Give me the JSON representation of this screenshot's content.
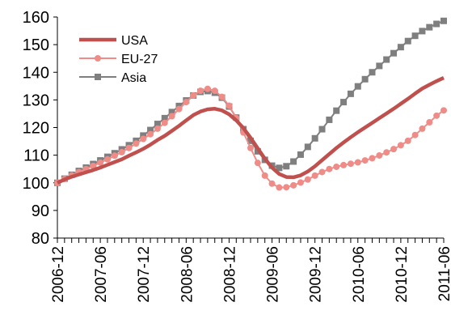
{
  "chart_data": {
    "type": "line",
    "x": [
      "2006-12",
      "2007-01",
      "2007-02",
      "2007-03",
      "2007-04",
      "2007-05",
      "2007-06",
      "2007-07",
      "2007-08",
      "2007-09",
      "2007-10",
      "2007-11",
      "2007-12",
      "2008-01",
      "2008-02",
      "2008-03",
      "2008-04",
      "2008-05",
      "2008-06",
      "2008-07",
      "2008-08",
      "2008-09",
      "2008-10",
      "2008-11",
      "2008-12",
      "2009-01",
      "2009-02",
      "2009-03",
      "2009-04",
      "2009-05",
      "2009-06",
      "2009-07",
      "2009-08",
      "2009-09",
      "2009-10",
      "2009-11",
      "2009-12",
      "2010-01",
      "2010-02",
      "2010-03",
      "2010-04",
      "2010-05",
      "2010-06",
      "2010-07",
      "2010-08",
      "2010-09",
      "2010-10",
      "2010-11",
      "2010-12",
      "2011-01",
      "2011-02",
      "2011-03",
      "2011-04",
      "2011-05",
      "2011-06"
    ],
    "x_tick_labels": [
      "2006-12",
      "2007-06",
      "2007-12",
      "2008-06",
      "2008-12",
      "2009-06",
      "2009-12",
      "2010-06",
      "2010-12",
      "2011-06"
    ],
    "ylim": [
      80,
      160
    ],
    "y_ticks": [
      80,
      90,
      100,
      110,
      120,
      130,
      140,
      150,
      160
    ],
    "legend_position": "top-left",
    "grid": false,
    "series": [
      {
        "name": "USA",
        "color": "#c0504d",
        "marker": "none",
        "values": [
          100,
          101.2,
          102.2,
          103,
          103.8,
          104.6,
          105.5,
          106.5,
          107.5,
          108.5,
          109.8,
          111,
          112.3,
          113.8,
          115.5,
          117,
          118.8,
          120.6,
          122.6,
          124.5,
          125.8,
          126.6,
          126.8,
          126.2,
          124.8,
          122.6,
          119.8,
          116.3,
          112.5,
          108.7,
          105.5,
          103.2,
          102.1,
          102,
          102.7,
          104.1,
          106,
          108.2,
          110.4,
          112.6,
          114.6,
          116.5,
          118.3,
          120,
          121.7,
          123.4,
          125.1,
          126.8,
          128.6,
          130.4,
          132.3,
          134.1,
          135.5,
          136.8,
          138
        ]
      },
      {
        "name": "EU-27",
        "color": "#f08c88",
        "marker": "circle",
        "values": [
          100,
          101.4,
          102.7,
          103.9,
          105,
          106.1,
          107.3,
          108.5,
          109.8,
          111.1,
          112.6,
          114.2,
          115.9,
          117.6,
          119.6,
          121.7,
          124.1,
          126.7,
          129.2,
          131.6,
          133.3,
          134,
          133.3,
          131.1,
          127.9,
          123.4,
          118.2,
          112.6,
          107.2,
          102.6,
          99.7,
          98.3,
          98.4,
          99.1,
          100.1,
          101.2,
          102.6,
          103.9,
          105,
          105.8,
          106.4,
          106.9,
          107.4,
          108.1,
          108.9,
          109.9,
          111,
          112.2,
          113.6,
          115.2,
          117.3,
          119.6,
          121.9,
          124.3,
          126.2
        ]
      },
      {
        "name": "Asia",
        "color": "#7f7f7f",
        "marker": "square",
        "values": [
          100,
          101.5,
          102.9,
          104.3,
          105.5,
          106.8,
          108.1,
          109.4,
          110.7,
          112.1,
          113.6,
          115.2,
          117.1,
          119.1,
          121.3,
          123.4,
          125.6,
          127.8,
          129.8,
          131.6,
          132.9,
          133.2,
          132.6,
          130.8,
          127.6,
          123.6,
          119.4,
          115.2,
          111.4,
          108.3,
          106.2,
          105.4,
          106,
          107.7,
          110.2,
          113,
          116.1,
          119.4,
          122.8,
          126.1,
          129.2,
          132.2,
          134.9,
          137.5,
          140,
          142.3,
          144.6,
          146.9,
          149.1,
          151.3,
          153.2,
          154.9,
          156.3,
          157.5,
          158.6
        ]
      }
    ]
  }
}
